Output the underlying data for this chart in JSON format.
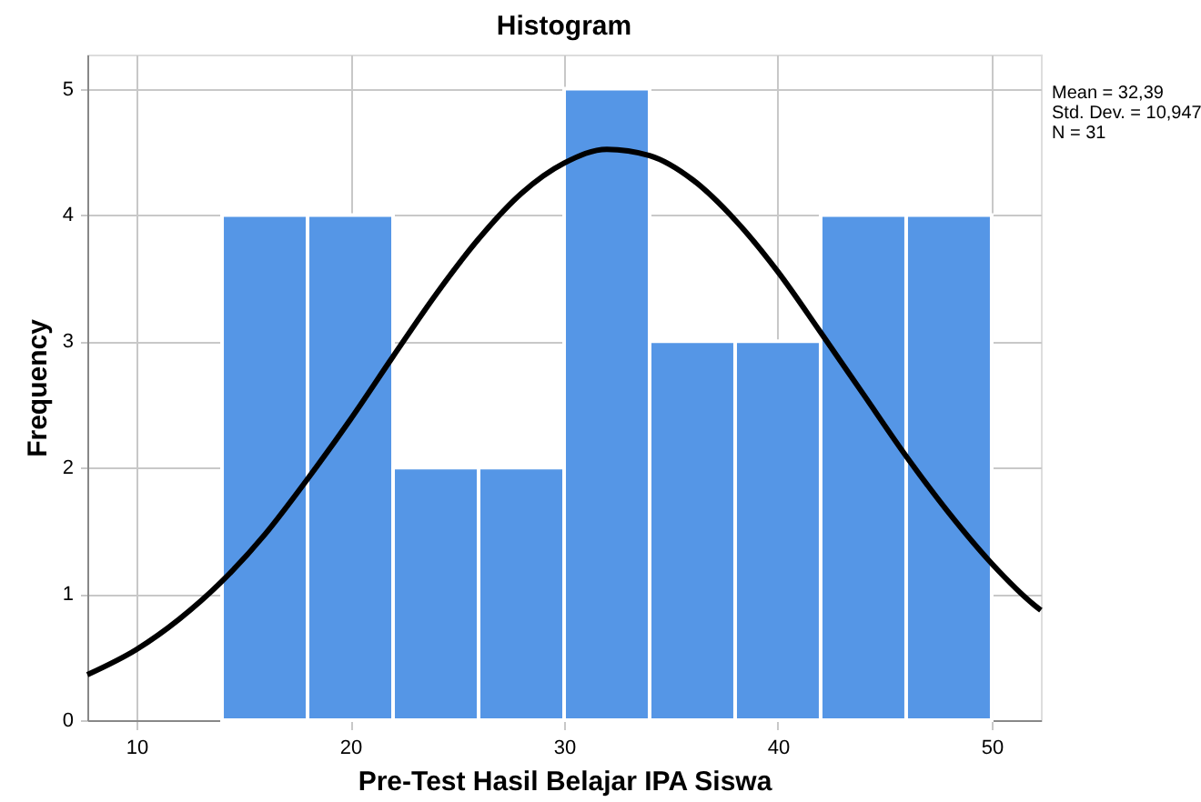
{
  "chart_data": {
    "type": "histogram",
    "title": "Histogram",
    "xlabel": "Pre-Test Hasil Belajar IPA Siswa",
    "ylabel": "Frequency",
    "bins": [
      14,
      18,
      22,
      26,
      30,
      34,
      38,
      42,
      46,
      50
    ],
    "values": [
      4,
      4,
      2,
      2,
      5,
      3,
      3,
      4,
      4
    ],
    "color": "#5596e6",
    "series": [
      {
        "type": "line",
        "color": "#000000",
        "x": [
          7.7,
          10,
          12,
          14,
          16,
          18,
          20,
          22,
          24,
          26,
          28,
          30,
          32,
          34,
          36,
          38,
          40,
          42,
          44,
          46,
          48,
          50,
          52,
          52.3
        ],
        "values": [
          0.36,
          0.56,
          0.8,
          1.1,
          1.47,
          1.91,
          2.38,
          2.88,
          3.37,
          3.81,
          4.17,
          4.41,
          4.52,
          4.47,
          4.28,
          3.96,
          3.55,
          3.07,
          2.58,
          2.09,
          1.64,
          1.24,
          0.91,
          0.87
        ]
      }
    ],
    "xlim": [
      7.7,
      52.3
    ],
    "xticks": [
      10,
      20,
      30,
      40,
      50
    ],
    "ylim": [
      0,
      5.27
    ],
    "yticks": [
      0,
      1,
      2,
      3,
      4,
      5
    ],
    "grid": true,
    "annotations": [
      "Mean = 32,39",
      "Std. Dev. = 10,947",
      "N = 31"
    ]
  }
}
